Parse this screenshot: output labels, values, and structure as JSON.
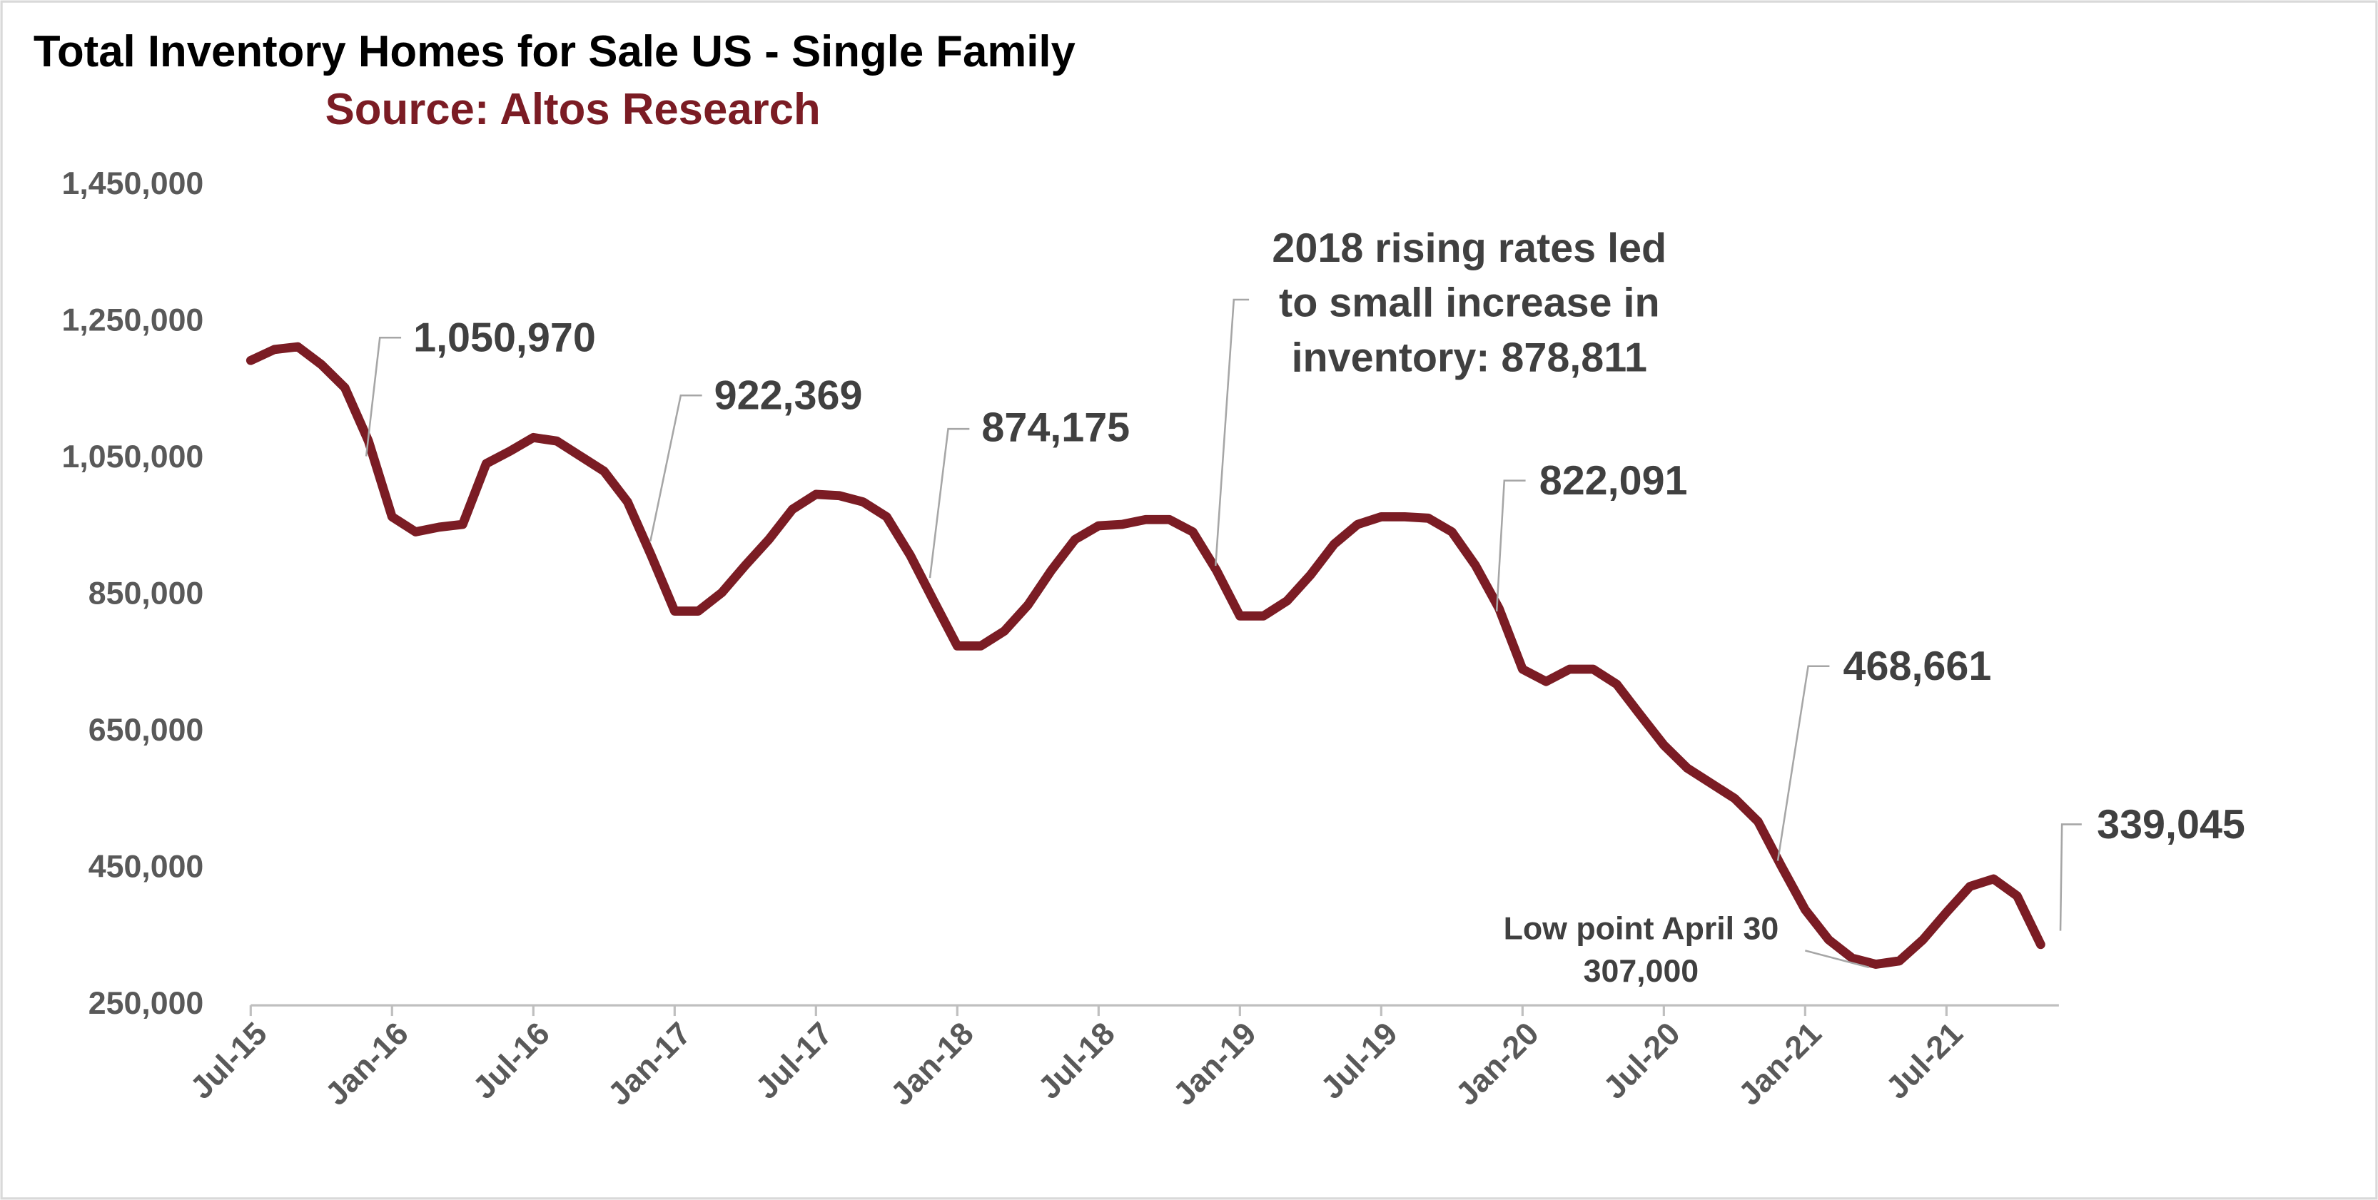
{
  "chart_data": {
    "type": "line",
    "title": "Total Inventory Homes for Sale US - Single Family",
    "subtitle": "Source: Altos Research",
    "categories": [
      "Jul-15",
      null,
      null,
      null,
      null,
      null,
      "Jan-16",
      null,
      null,
      null,
      null,
      null,
      "Jul-16",
      null,
      null,
      null,
      null,
      null,
      "Jan-17",
      null,
      null,
      null,
      null,
      null,
      "Jul-17",
      null,
      null,
      null,
      null,
      null,
      "Jan-18",
      null,
      null,
      null,
      null,
      null,
      "Jul-18",
      null,
      null,
      null,
      null,
      null,
      "Jan-19",
      null,
      null,
      null,
      null,
      null,
      "Jul-19",
      null,
      null,
      null,
      null,
      null,
      "Jan-20",
      null,
      null,
      null,
      null,
      null,
      "Jul-20",
      null,
      null,
      null,
      null,
      null,
      "Jan-21",
      null,
      null,
      null,
      null,
      null,
      "Jul-21",
      null,
      null,
      null,
      null
    ],
    "series": [
      {
        "name": "Total Inventory",
        "color": "#7b1c24",
        "values": [
          1194000,
          1210000,
          1214000,
          1188000,
          1154000,
          1076000,
          965000,
          943000,
          950000,
          954000,
          1043000,
          1061000,
          1081000,
          1076000,
          1054000,
          1032000,
          987000,
          909000,
          827000,
          827000,
          854000,
          894000,
          932000,
          976000,
          998000,
          996000,
          987000,
          965000,
          909000,
          842000,
          776000,
          776000,
          798000,
          836000,
          887000,
          932000,
          952000,
          954000,
          961000,
          961000,
          943000,
          887000,
          820000,
          820000,
          842000,
          880000,
          925000,
          954000,
          965000,
          965000,
          963000,
          943000,
          894000,
          831000,
          742000,
          724000,
          742000,
          742000,
          720000,
          675000,
          631000,
          597000,
          575000,
          553000,
          519000,
          453000,
          390000,
          346000,
          319000,
          310000,
          315000,
          346000,
          386000,
          424000,
          435000,
          410000,
          339045
        ]
      }
    ],
    "ylim": [
      250000,
      1450000
    ],
    "yticks": [
      {
        "value": 250000,
        "label": "250,000"
      },
      {
        "value": 450000,
        "label": "450,000"
      },
      {
        "value": 650000,
        "label": "650,000"
      },
      {
        "value": 850000,
        "label": "850,000"
      },
      {
        "value": 1050000,
        "label": "1,050,000"
      },
      {
        "value": 1250000,
        "label": "1,250,000"
      },
      {
        "value": 1450000,
        "label": "1,450,000"
      }
    ],
    "grid": false,
    "annotations": [
      [
        "1,050,970"
      ],
      [
        "922,369"
      ],
      [
        "874,175"
      ],
      [
        "2018 rising rates led",
        "to small increase in",
        "inventory: 878,811"
      ],
      [
        "822,091"
      ],
      [
        "468,661"
      ],
      [
        "339,045"
      ],
      [
        "Low point April 30",
        "307,000"
      ]
    ]
  }
}
